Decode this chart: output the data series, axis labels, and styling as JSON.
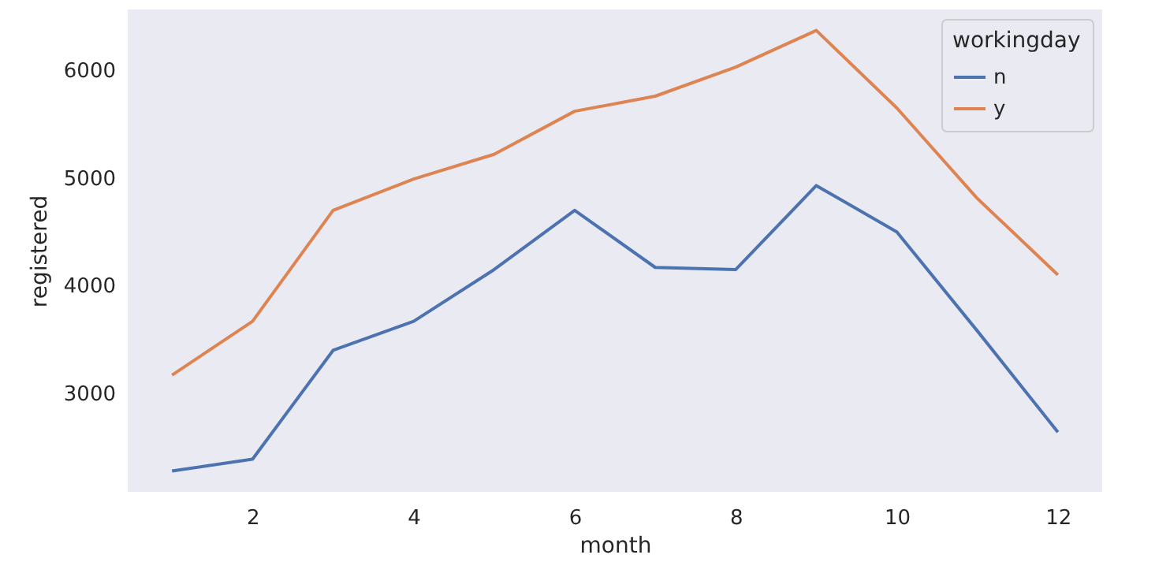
{
  "chart_data": {
    "type": "line",
    "xlabel": "month",
    "ylabel": "registered",
    "legend_title": "workingday",
    "legend": "top right",
    "grid": false,
    "x": [
      1,
      2,
      3,
      4,
      5,
      6,
      7,
      8,
      9,
      10,
      11,
      12
    ],
    "xlim": [
      0.45,
      12.55
    ],
    "xticks": [
      2,
      4,
      6,
      8,
      10,
      12
    ],
    "ylim": [
      2086,
      6565
    ],
    "yticks": [
      3000,
      4000,
      5000,
      6000
    ],
    "series": [
      {
        "name": "n",
        "color": "#4c72b0",
        "values": [
          2280,
          2390,
          3400,
          3670,
          4150,
          4700,
          4170,
          4150,
          4930,
          4500,
          3580,
          2640
        ]
      },
      {
        "name": "y",
        "color": "#dd8452",
        "values": [
          3170,
          3670,
          4700,
          4990,
          5220,
          5620,
          5760,
          6030,
          6370,
          5650,
          4810,
          4100
        ]
      }
    ]
  }
}
